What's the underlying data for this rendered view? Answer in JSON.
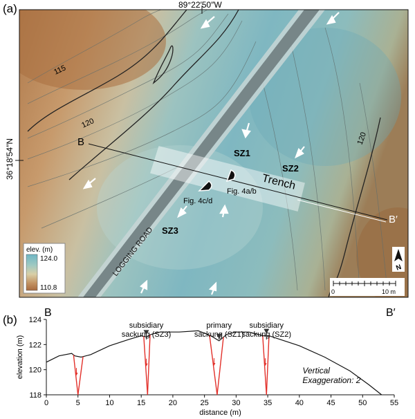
{
  "panel_a": {
    "label": "(a)",
    "longitude_label": "89°22′50″W",
    "latitude_label": "36°18′54″N",
    "contour_labels": [
      "115",
      "120",
      "120"
    ],
    "features": {
      "trench": "Trench",
      "road": "LOGGING ROAD",
      "sz1": "SZ1",
      "sz2": "SZ2",
      "sz3": "SZ3",
      "fig4ab": "Fig. 4a/b",
      "fig4cd": "Fig. 4c/d",
      "b_start": "B",
      "b_end": "B′"
    },
    "legend": {
      "title": "elev. (m)",
      "max": "124.0",
      "min": "110.8",
      "colors": [
        "#6fb6c4",
        "#9fc9c2",
        "#d9cfa6",
        "#c29262",
        "#a86a3e"
      ]
    },
    "scale_bar": {
      "start": "0",
      "end": "10 m",
      "length_m": 10
    },
    "north": "N"
  },
  "panel_b": {
    "label": "(b)",
    "chart_data": {
      "type": "line",
      "title": "",
      "xlabel": "distance (m)",
      "ylabel": "elevation (m)",
      "xlim": [
        0,
        55
      ],
      "ylim": [
        118,
        124
      ],
      "x_ticks": [
        0,
        5,
        10,
        15,
        20,
        25,
        30,
        35,
        40,
        45,
        50,
        55
      ],
      "y_ticks": [
        118,
        120,
        122,
        124
      ],
      "end_labels": {
        "left": "B",
        "right": "B′"
      },
      "profile": {
        "x": [
          0,
          2,
          4,
          4.5,
          5.5,
          7,
          10,
          13,
          15,
          15.8,
          16.5,
          18,
          21,
          24,
          26,
          27.3,
          28.5,
          30,
          32,
          34.3,
          35.2,
          37,
          40,
          44,
          48,
          51,
          53
        ],
        "y": [
          120.6,
          121.1,
          121.3,
          121.1,
          121.0,
          121.2,
          121.9,
          122.4,
          122.7,
          122.6,
          122.8,
          123.0,
          123.0,
          123.1,
          122.7,
          122.3,
          122.8,
          123.0,
          123.0,
          122.7,
          122.7,
          122.4,
          121.9,
          121.0,
          119.9,
          118.8,
          118.0
        ]
      },
      "faults": [
        {
          "top_x": [
            4.3,
            5.8
          ],
          "bottom_x": 5.0
        },
        {
          "top_x": [
            15.4,
            16.4
          ],
          "bottom_x": 16.0
        },
        {
          "top_x": [
            25.8,
            28.0
          ],
          "bottom_x": 27.0
        },
        {
          "top_x": [
            34.2,
            35.2
          ],
          "bottom_x": 34.8
        }
      ],
      "annotations": [
        {
          "line1": "subsidiary",
          "line2": "sackung (SZ3)",
          "x": 15.8
        },
        {
          "line1": "primary",
          "line2": "sackung (SZ1)",
          "x": 27.3
        },
        {
          "line1": "subsidiary",
          "line2": "sackung (SZ2)",
          "x": 34.8
        }
      ],
      "note": [
        "Vertical",
        "Exaggeration: 2"
      ]
    }
  }
}
